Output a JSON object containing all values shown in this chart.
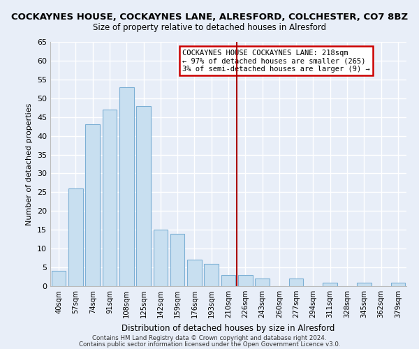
{
  "title": "COCKAYNES HOUSE, COCKAYNES LANE, ALRESFORD, COLCHESTER, CO7 8BZ",
  "subtitle": "Size of property relative to detached houses in Alresford",
  "xlabel": "Distribution of detached houses by size in Alresford",
  "ylabel": "Number of detached properties",
  "bar_labels": [
    "40sqm",
    "57sqm",
    "74sqm",
    "91sqm",
    "108sqm",
    "125sqm",
    "142sqm",
    "159sqm",
    "176sqm",
    "193sqm",
    "210sqm",
    "226sqm",
    "243sqm",
    "260sqm",
    "277sqm",
    "294sqm",
    "311sqm",
    "328sqm",
    "345sqm",
    "362sqm",
    "379sqm"
  ],
  "bar_values": [
    4,
    26,
    43,
    47,
    53,
    48,
    15,
    14,
    7,
    6,
    3,
    3,
    2,
    0,
    2,
    0,
    1,
    0,
    1,
    0,
    1
  ],
  "bar_color": "#c8dff0",
  "bar_edge_color": "#7bafd4",
  "ylim": [
    0,
    65
  ],
  "yticks": [
    0,
    5,
    10,
    15,
    20,
    25,
    30,
    35,
    40,
    45,
    50,
    55,
    60,
    65
  ],
  "vline_x": 10.5,
  "vline_color": "#aa0000",
  "annotation_title": "COCKAYNES HOUSE COCKAYNES LANE: 218sqm",
  "annotation_line1": "← 97% of detached houses are smaller (265)",
  "annotation_line2": "3% of semi-detached houses are larger (9) →",
  "footer1": "Contains HM Land Registry data © Crown copyright and database right 2024.",
  "footer2": "Contains public sector information licensed under the Open Government Licence v3.0.",
  "bg_color": "#e8eef8",
  "grid_color": "#ffffff"
}
